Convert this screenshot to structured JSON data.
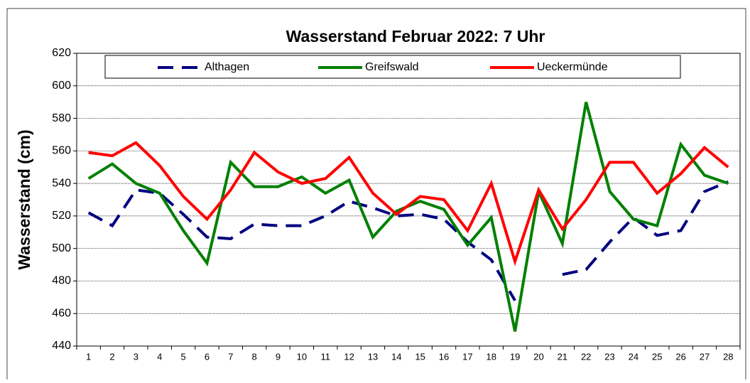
{
  "chart_data": {
    "type": "line",
    "title": "Wasserstand Februar 2022: 7 Uhr",
    "y_label": "Wasserstand (cm)",
    "categories": [
      "1",
      "2",
      "3",
      "4",
      "5",
      "6",
      "7",
      "8",
      "9",
      "10",
      "11",
      "12",
      "13",
      "14",
      "15",
      "16",
      "17",
      "18",
      "19",
      "20",
      "21",
      "22",
      "23",
      "24",
      "25",
      "26",
      "27",
      "28"
    ],
    "series": [
      {
        "name": "Althagen",
        "color": "#000080",
        "dash": true,
        "values": [
          522,
          514,
          536,
          534,
          521,
          507,
          506,
          515,
          514,
          514,
          520,
          529,
          525,
          520,
          521,
          518,
          504,
          493,
          468,
          null,
          484,
          487,
          504,
          519,
          508,
          511,
          535,
          541
        ]
      },
      {
        "name": "Greifswald",
        "color": "#008000",
        "dash": false,
        "values": [
          543,
          552,
          540,
          534,
          511,
          491,
          553,
          538,
          538,
          544,
          534,
          542,
          507,
          523,
          529,
          524,
          502,
          519,
          449,
          535,
          503,
          590,
          535,
          518,
          514,
          564,
          545,
          540
        ]
      },
      {
        "name": "Ueckermünde",
        "color": "#ff0000",
        "dash": false,
        "values": [
          559,
          557,
          565,
          551,
          532,
          518,
          536,
          559,
          547,
          540,
          543,
          556,
          534,
          521,
          532,
          530,
          511,
          540,
          492,
          536,
          512,
          530,
          553,
          553,
          534,
          546,
          562,
          550
        ]
      }
    ],
    "ylim": [
      440,
      620
    ],
    "yticks": [
      440,
      460,
      480,
      500,
      520,
      540,
      560,
      580,
      600,
      620
    ],
    "grid": true
  }
}
